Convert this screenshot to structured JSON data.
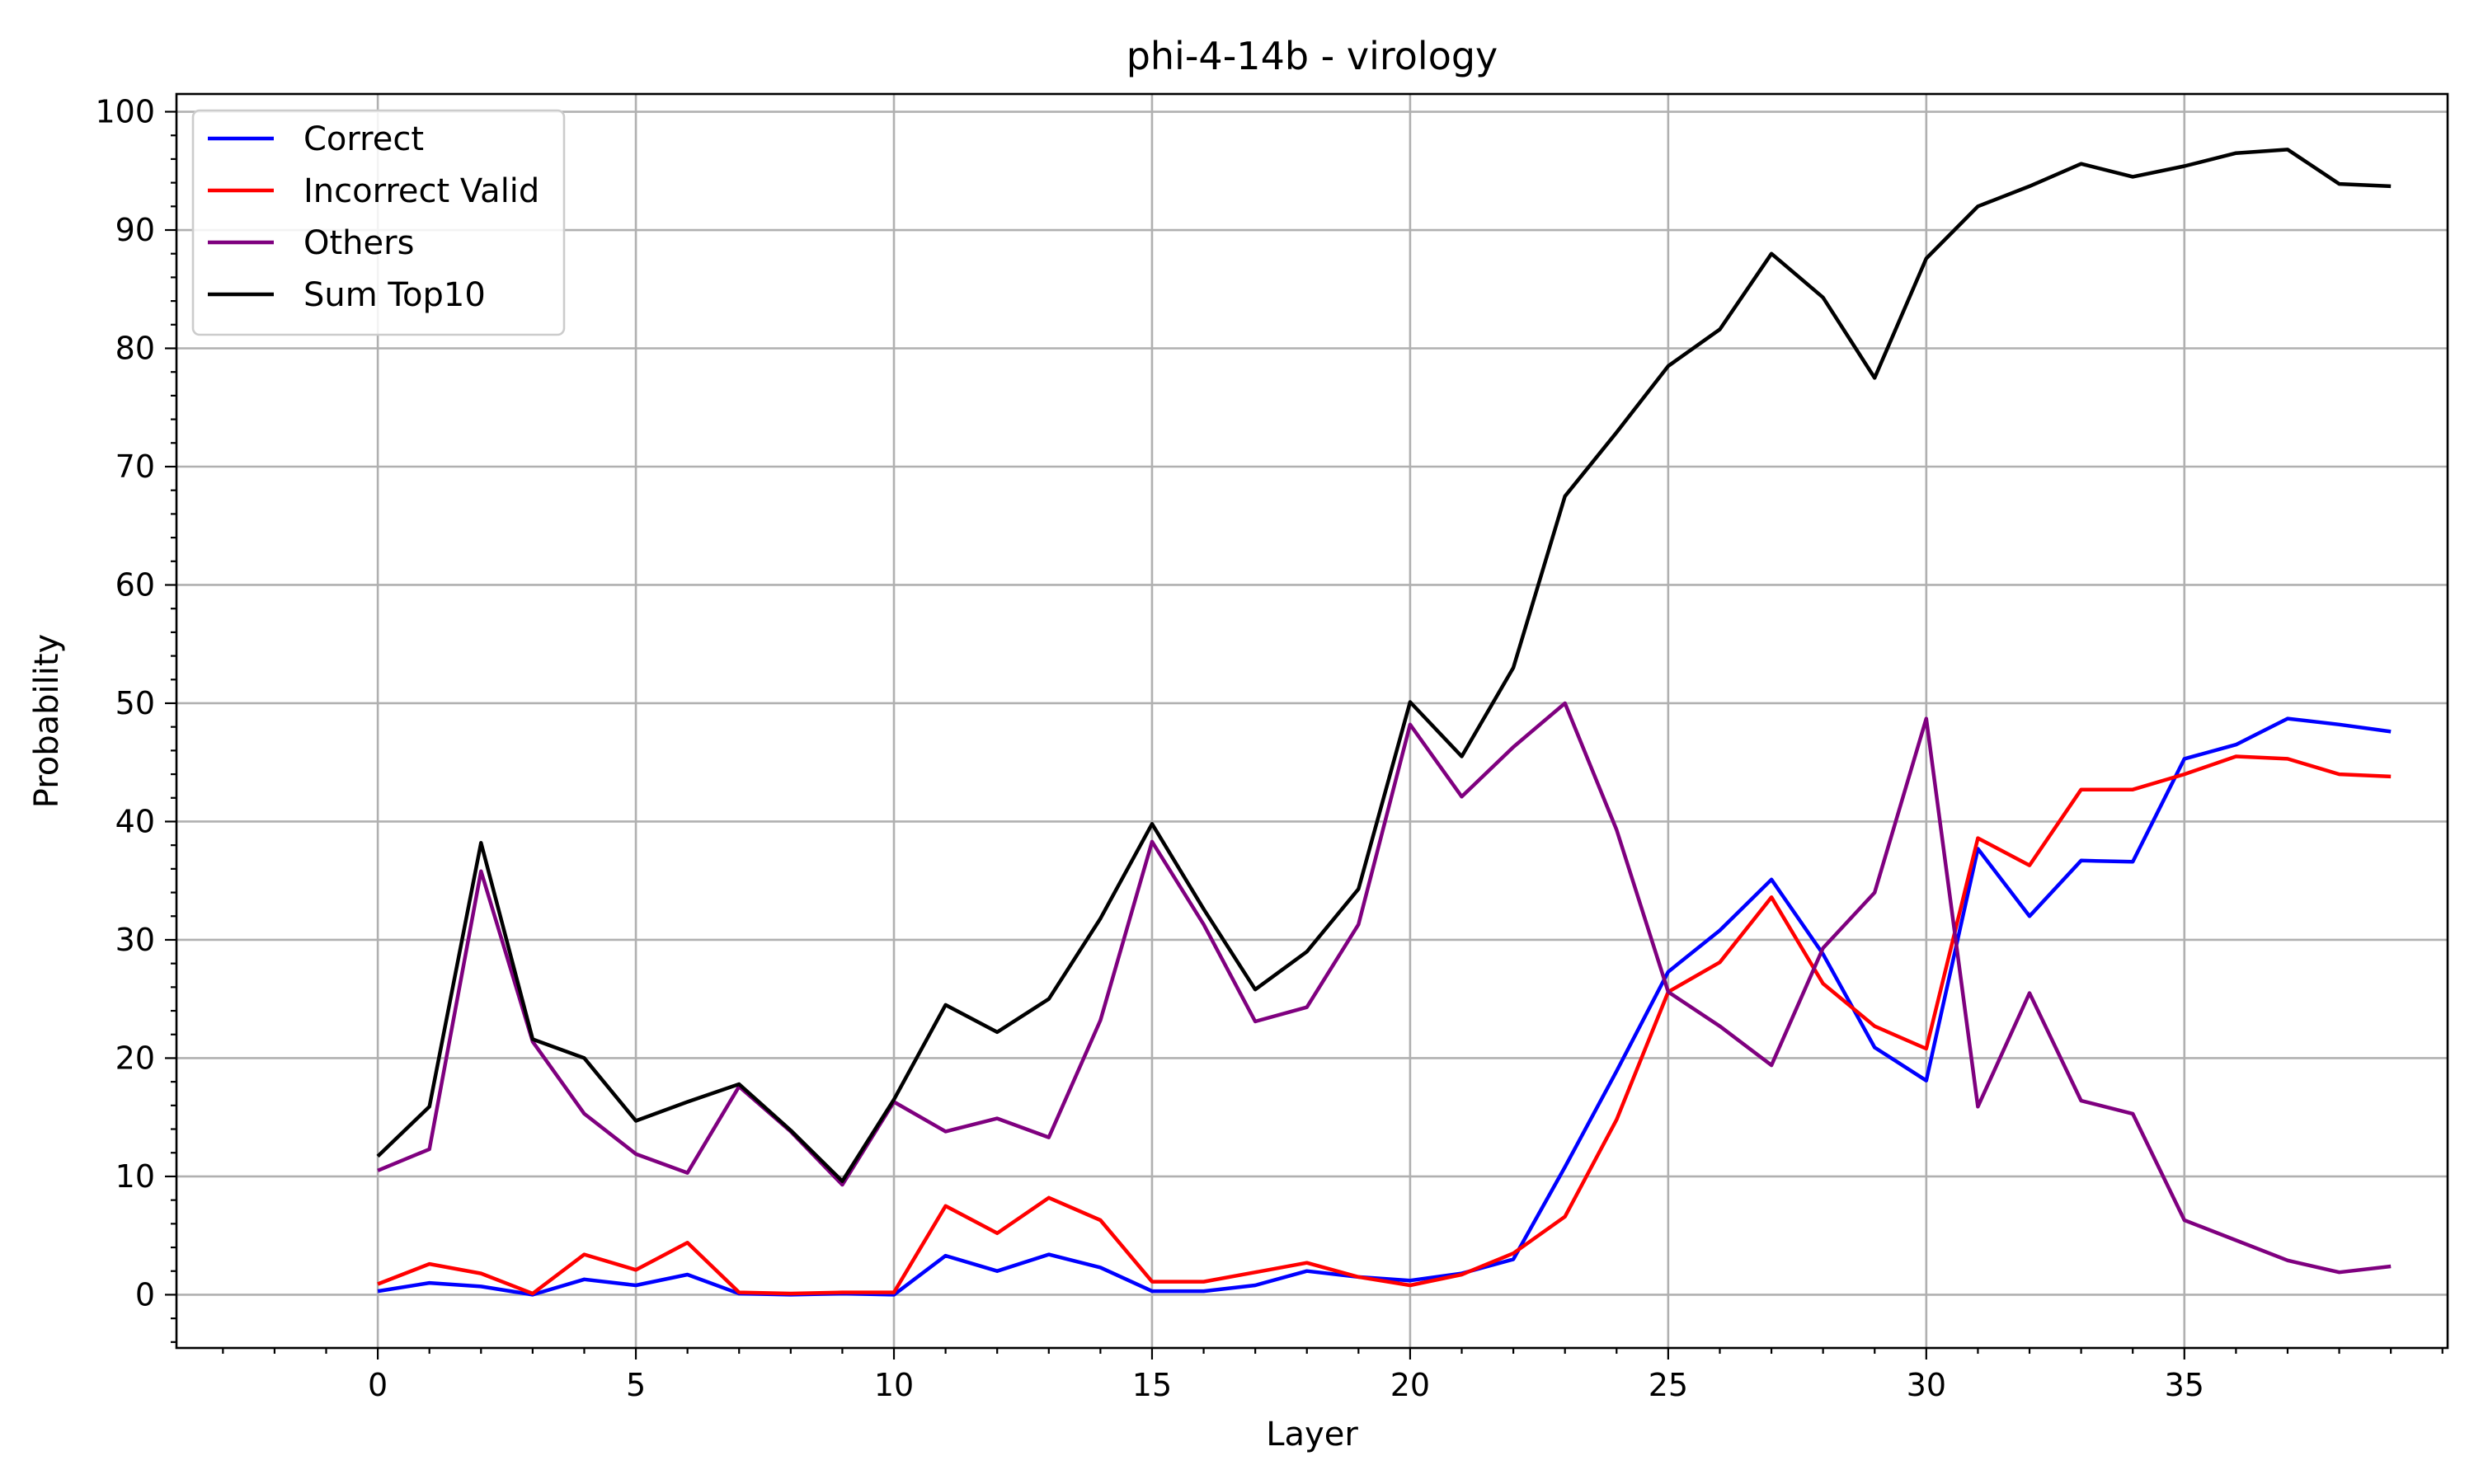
{
  "chart_data": {
    "type": "line",
    "title": "phi-4-14b - virology",
    "xlabel": "Layer",
    "ylabel": "Probability",
    "xlim": [
      -3.9,
      40.1
    ],
    "ylim": [
      -4.5,
      101.5
    ],
    "xticks": [
      0,
      5,
      10,
      15,
      20,
      25,
      30,
      35
    ],
    "yticks": [
      0,
      10,
      20,
      30,
      40,
      50,
      60,
      70,
      80,
      90,
      100
    ],
    "grid": true,
    "legend_position": "top-left",
    "x": [
      0,
      1,
      2,
      3,
      4,
      5,
      6,
      7,
      8,
      9,
      10,
      11,
      12,
      13,
      14,
      15,
      16,
      17,
      18,
      19,
      20,
      21,
      22,
      23,
      24,
      25,
      26,
      27,
      28,
      29,
      30,
      31,
      32,
      33,
      34,
      35,
      36,
      37,
      38,
      39
    ],
    "series": [
      {
        "name": "Correct",
        "color": "#0000ff",
        "values": [
          0.3,
          1.0,
          0.7,
          0.0,
          1.3,
          0.8,
          1.7,
          0.1,
          0.0,
          0.1,
          0.0,
          3.3,
          2.0,
          3.4,
          2.3,
          0.3,
          0.3,
          0.8,
          2.0,
          1.5,
          1.2,
          1.8,
          3.0,
          10.8,
          18.9,
          27.3,
          30.8,
          35.1,
          28.8,
          20.9,
          18.1,
          37.7,
          32.0,
          36.7,
          36.6,
          45.3,
          46.5,
          48.7,
          48.2,
          47.6
        ]
      },
      {
        "name": "Incorrect Valid",
        "color": "#ff0000",
        "values": [
          0.9,
          2.6,
          1.8,
          0.1,
          3.4,
          2.1,
          4.4,
          0.2,
          0.1,
          0.2,
          0.2,
          7.5,
          5.2,
          8.2,
          6.3,
          1.1,
          1.1,
          1.9,
          2.7,
          1.5,
          0.8,
          1.7,
          3.5,
          6.6,
          14.8,
          25.6,
          28.1,
          33.6,
          26.3,
          22.7,
          20.8,
          38.6,
          36.3,
          42.7,
          42.7,
          44.0,
          45.5,
          45.3,
          44.0,
          43.8
        ]
      },
      {
        "name": "Others",
        "color": "#7f007f",
        "values": [
          10.5,
          12.3,
          35.8,
          21.4,
          15.3,
          11.9,
          10.3,
          17.6,
          13.8,
          9.3,
          16.3,
          13.8,
          14.9,
          13.3,
          23.2,
          38.3,
          31.3,
          23.1,
          24.3,
          31.3,
          48.2,
          42.1,
          46.3,
          50.0,
          39.3,
          25.6,
          22.7,
          19.4,
          29.3,
          34.0,
          48.7,
          15.9,
          25.5,
          16.4,
          15.3,
          6.3,
          4.6,
          2.9,
          1.9,
          2.4
        ]
      },
      {
        "name": "Sum Top10",
        "color": "#000000",
        "values": [
          11.7,
          15.9,
          38.2,
          21.6,
          20.0,
          14.7,
          16.3,
          17.8,
          13.9,
          9.6,
          16.5,
          24.5,
          22.2,
          25.0,
          31.8,
          39.8,
          32.6,
          25.8,
          29.0,
          34.3,
          50.1,
          45.5,
          53.0,
          67.5,
          72.9,
          78.5,
          81.6,
          88.0,
          84.3,
          77.5,
          87.6,
          92.0,
          93.7,
          95.6,
          94.5,
          95.4,
          96.5,
          96.8,
          93.9,
          93.7
        ]
      }
    ]
  }
}
